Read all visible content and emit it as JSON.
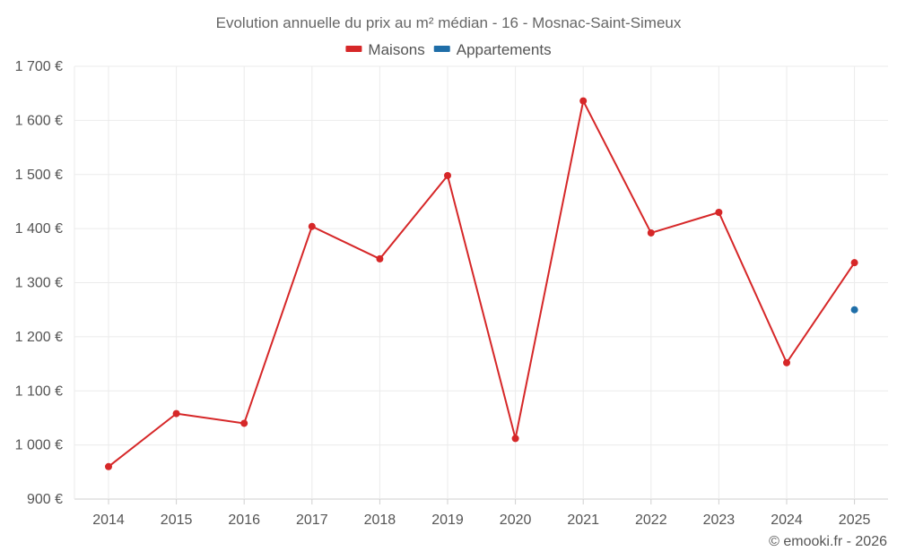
{
  "chart_data": {
    "type": "line",
    "title": "Evolution annuelle du prix au m² médian - 16 - Mosnac-Saint-Simeux",
    "categories": [
      "2014",
      "2015",
      "2016",
      "2017",
      "2018",
      "2019",
      "2020",
      "2021",
      "2022",
      "2023",
      "2024",
      "2025"
    ],
    "series": [
      {
        "name": "Maisons",
        "color": "#d62728",
        "values": [
          960,
          1058,
          1040,
          1404,
          1344,
          1498,
          1012,
          1636,
          1392,
          1430,
          1152,
          1337
        ]
      },
      {
        "name": "Appartements",
        "color": "#1f6ea8",
        "values": [
          null,
          null,
          null,
          null,
          null,
          null,
          null,
          null,
          null,
          null,
          null,
          1250
        ]
      }
    ],
    "ylim": [
      900,
      1700
    ],
    "yticks": [
      900,
      1000,
      1100,
      1200,
      1300,
      1400,
      1500,
      1600,
      1700
    ],
    "ytick_labels": [
      "900 €",
      "1 000 €",
      "1 100 €",
      "1 200 €",
      "1 300 €",
      "1 400 €",
      "1 500 €",
      "1 600 €",
      "1 700 €"
    ],
    "xlabel": "",
    "ylabel": "",
    "grid": true,
    "legend_position": "top-center"
  },
  "credit": "© emooki.fr - 2026"
}
